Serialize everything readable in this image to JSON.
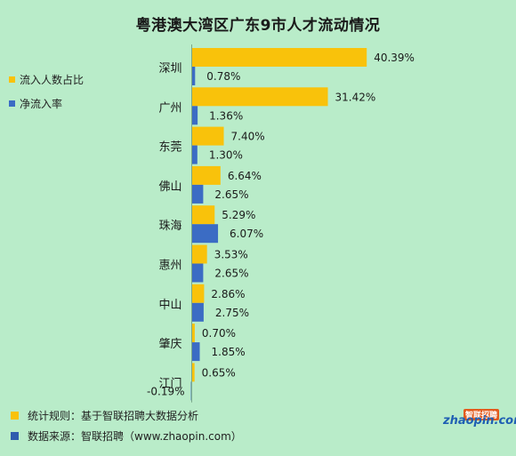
{
  "chart_data": {
    "type": "bar",
    "orientation": "horizontal",
    "title": "粤港澳大湾区广东9市人才流动情况",
    "categories": [
      "深圳",
      "广州",
      "东莞",
      "佛山",
      "珠海",
      "惠州",
      "中山",
      "肇庆",
      "江门"
    ],
    "series": [
      {
        "name": "流入人数占比",
        "color": "#f9c20b",
        "values": [
          40.39,
          31.42,
          7.4,
          6.64,
          5.29,
          3.53,
          2.86,
          0.7,
          0.65
        ],
        "labels": [
          "40.39%",
          "31.42%",
          "7.40%",
          "6.64%",
          "5.29%",
          "3.53%",
          "2.86%",
          "0.70%",
          "0.65%"
        ]
      },
      {
        "name": "净流入率",
        "color": "#3b6cc4",
        "values": [
          0.78,
          1.36,
          1.3,
          2.65,
          6.07,
          2.65,
          2.75,
          1.85,
          -0.19
        ],
        "labels": [
          "0.78%",
          "1.36%",
          "1.30%",
          "2.65%",
          "6.07%",
          "2.65%",
          "2.75%",
          "1.85%",
          "-0.19%"
        ]
      }
    ],
    "legend_position": "left",
    "grid": false
  },
  "footnotes": [
    {
      "text": "统计规则：基于智联招聘大数据分析",
      "color": "#f9c20b"
    },
    {
      "text": "数据来源：智联招聘（www.zhaopin.com）",
      "color": "#2f5cae"
    }
  ],
  "logo": {
    "text": "zhaopin.com",
    "badge": "智联招聘"
  }
}
